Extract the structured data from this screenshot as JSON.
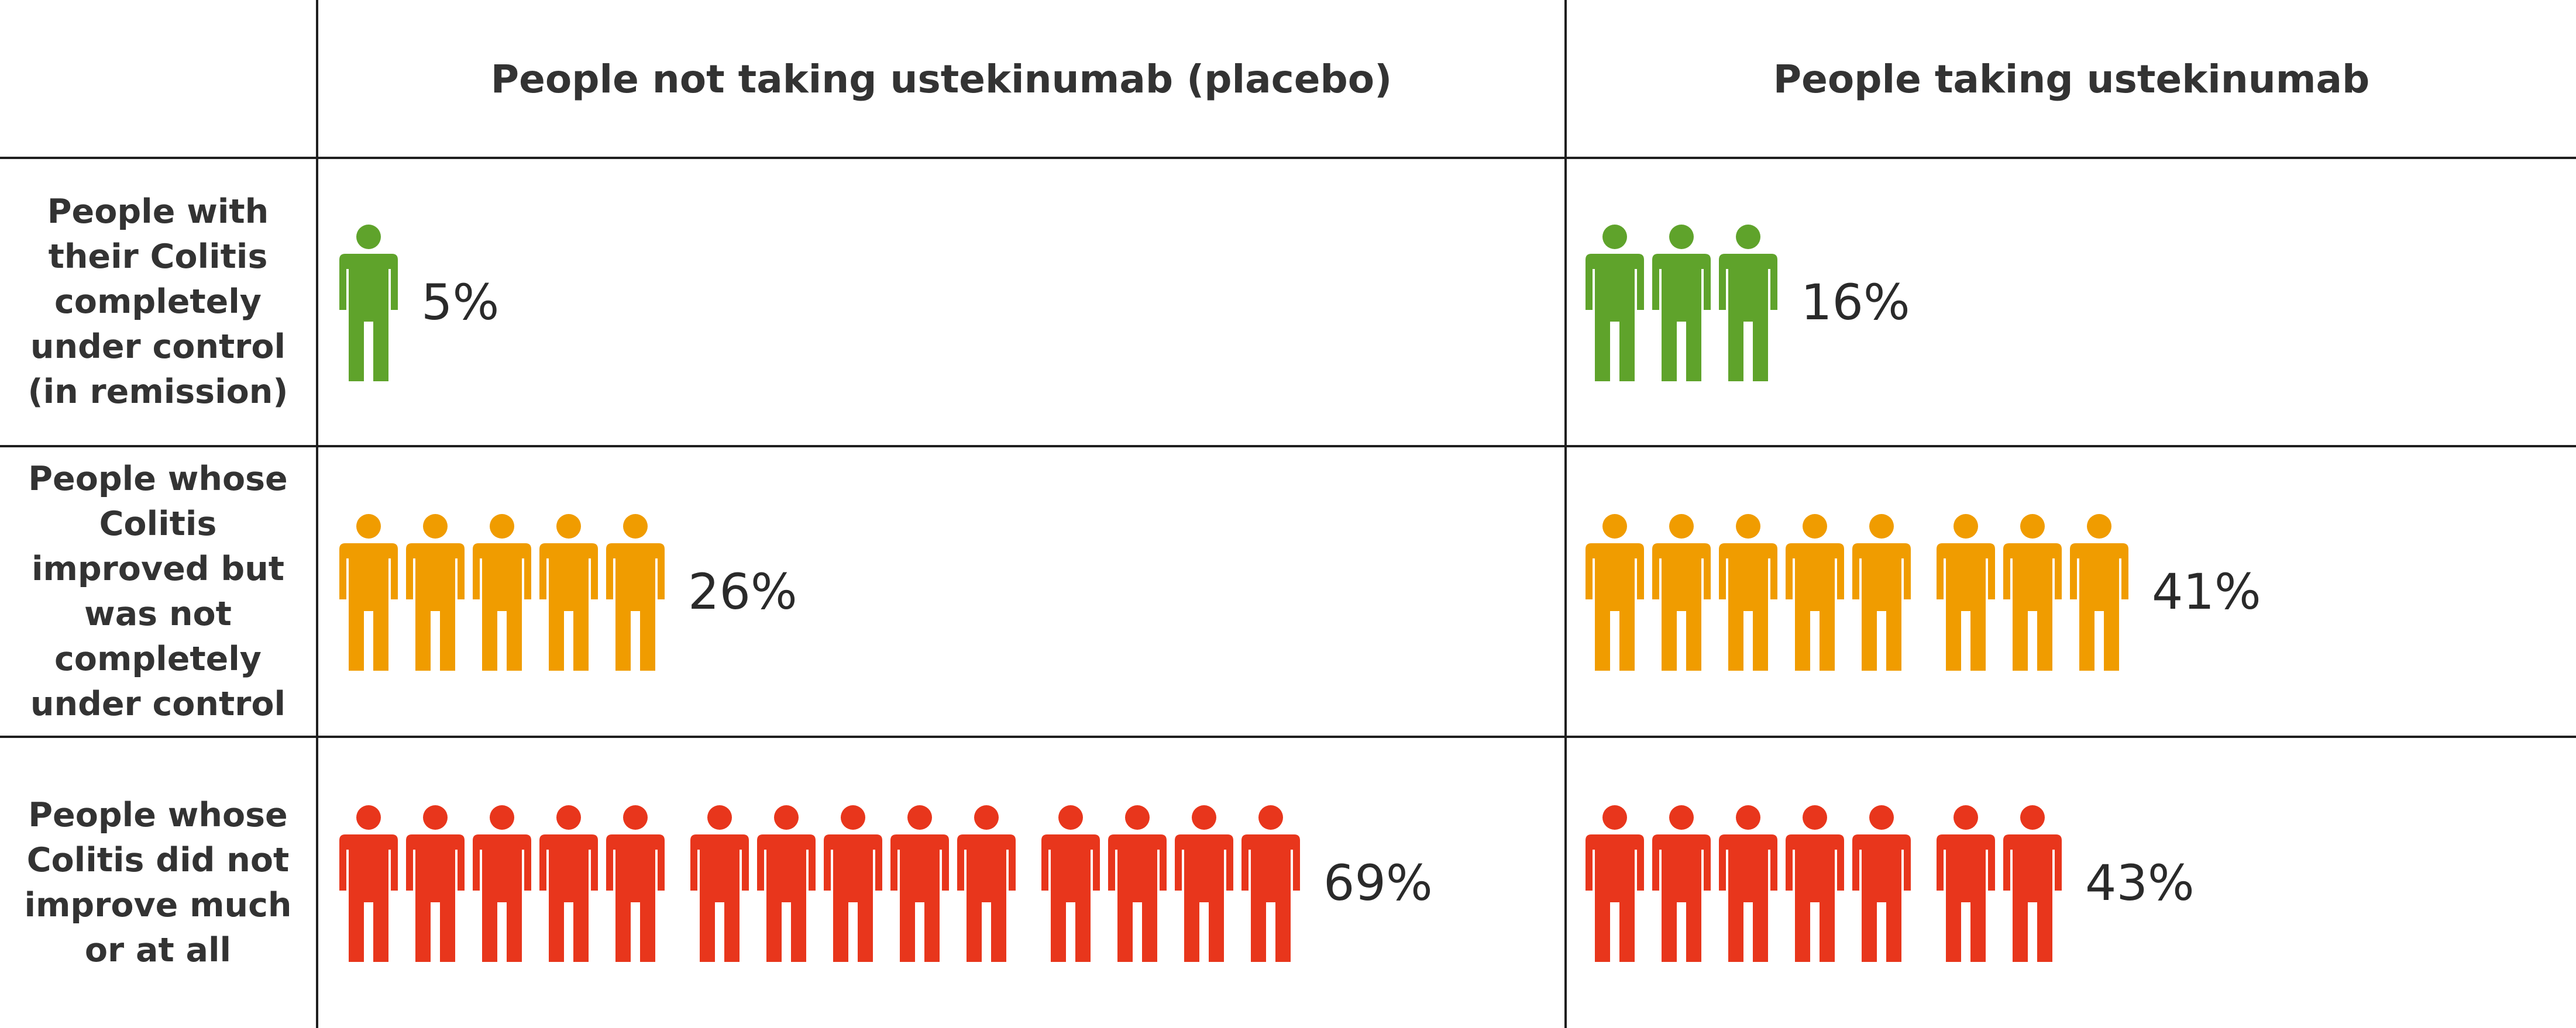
{
  "chart_data": {
    "type": "table",
    "columns": [
      "",
      "People not taking ustekinumab (placebo)",
      "People taking ustekinumab"
    ],
    "rows": [
      {
        "label": "People with their Colitis completely under control (in remission)",
        "label_lines": [
          "People with",
          "their Colitis",
          "completely",
          "under control",
          "(in remission)"
        ],
        "color": "#5fa32b",
        "values": [
          5,
          16
        ],
        "value_labels": [
          "5%",
          "16%"
        ],
        "icon_groups": [
          [
            1
          ],
          [
            3
          ]
        ]
      },
      {
        "label": "People whose Colitis improved but was not completely under control",
        "label_lines": [
          "People whose",
          "Colitis",
          "improved but",
          "was not",
          "completely",
          "under control"
        ],
        "color": "#f09c00",
        "values": [
          26,
          41
        ],
        "value_labels": [
          "26%",
          "41%"
        ],
        "icon_groups": [
          [
            5
          ],
          [
            5,
            3
          ]
        ]
      },
      {
        "label": "People whose Colitis did not improve much or at all",
        "label_lines": [
          "People whose",
          "Colitis did not",
          "improve much",
          "or at all"
        ],
        "color": "#e8361c",
        "values": [
          69,
          43
        ],
        "value_labels": [
          "69%",
          "43%"
        ],
        "icon_groups": [
          [
            5,
            5,
            4
          ],
          [
            5,
            2
          ]
        ]
      }
    ]
  }
}
